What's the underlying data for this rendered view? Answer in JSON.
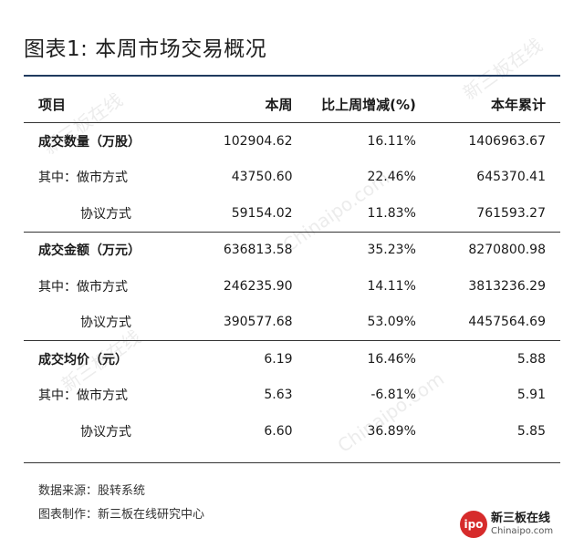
{
  "title": "图表1: 本周市场交易概况",
  "table": {
    "headers": [
      "项目",
      "本周",
      "比上周增减(%)",
      "本年累计"
    ],
    "rows": [
      {
        "label": "成交数量（万股）",
        "week": "102904.62",
        "change": "16.11%",
        "ytd": "1406963.67",
        "kind": "group"
      },
      {
        "label": "其中：做市方式",
        "week": "43750.60",
        "change": "22.46%",
        "ytd": "645370.41",
        "kind": "item"
      },
      {
        "label": "协议方式",
        "week": "59154.02",
        "change": "11.83%",
        "ytd": "761593.27",
        "kind": "sub"
      },
      {
        "label": "成交金额（万元）",
        "week": "636813.58",
        "change": "35.23%",
        "ytd": "8270800.98",
        "kind": "group"
      },
      {
        "label": "其中：做市方式",
        "week": "246235.90",
        "change": "14.11%",
        "ytd": "3813236.29",
        "kind": "item"
      },
      {
        "label": "协议方式",
        "week": "390577.68",
        "change": "53.09%",
        "ytd": "4457564.69",
        "kind": "sub"
      },
      {
        "label": "成交均价（元）",
        "week": "6.19",
        "change": "16.46%",
        "ytd": "5.88",
        "kind": "group"
      },
      {
        "label": "其中：做市方式",
        "week": "5.63",
        "change": "-6.81%",
        "ytd": "5.91",
        "kind": "item"
      },
      {
        "label": "协议方式",
        "week": "6.60",
        "change": "36.89%",
        "ytd": "5.85",
        "kind": "sub"
      }
    ]
  },
  "footer": {
    "source": "数据来源：股转系统",
    "maker": "图表制作：新三板在线研究中心"
  },
  "logo": {
    "circle_text": "ipo",
    "cn": "新三板在线",
    "en": "Chinaipo.com",
    "color": "#d62b2b"
  },
  "watermark": {
    "cn": "新三板在线",
    "en": "Chinaipo.com"
  }
}
